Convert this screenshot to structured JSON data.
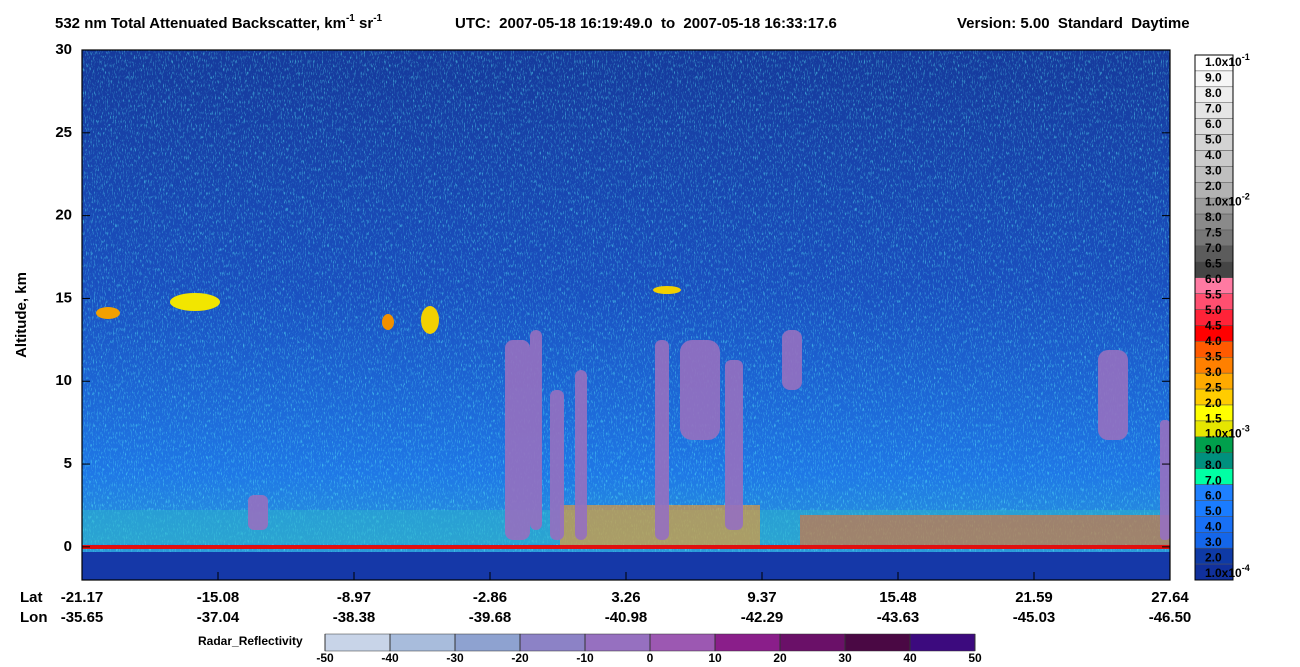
{
  "chart_data": {
    "type": "heatmap",
    "title": {
      "main": "532 nm Total Attenuated Backscatter, km",
      "exp1": "-1",
      "mid": " sr",
      "exp2": "-1",
      "time": "UTC:  2007-05-18 16:19:49.0  to  2007-05-18 16:33:17.6",
      "version": "Version: 5.00  Standard  Daytime"
    },
    "ylabel": "Altitude, km",
    "ylim": [
      -2,
      30
    ],
    "yticks": [
      0,
      5,
      10,
      15,
      20,
      25,
      30
    ],
    "x_row_labels": [
      "Lat",
      "Lon"
    ],
    "x_categories": [
      {
        "lat": "-21.17",
        "lon": "-35.65"
      },
      {
        "lat": "-15.08",
        "lon": "-37.04"
      },
      {
        "lat": "-8.97",
        "lon": "-38.38"
      },
      {
        "lat": "-2.86",
        "lon": "-39.68"
      },
      {
        "lat": "3.26",
        "lon": "-40.98"
      },
      {
        "lat": "9.37",
        "lon": "-42.29"
      },
      {
        "lat": "15.48",
        "lon": "-43.63"
      },
      {
        "lat": "21.59",
        "lon": "-45.03"
      },
      {
        "lat": "27.64",
        "lon": "-46.50"
      }
    ],
    "colorbar": {
      "labels": [
        {
          "base": "1.0x10",
          "exp": "-1"
        },
        "9.0",
        "8.0",
        "7.0",
        "6.0",
        "5.0",
        "4.0",
        "3.0",
        "2.0",
        {
          "base": "1.0x10",
          "exp": "-2"
        },
        "8.0",
        "7.5",
        "7.0",
        "6.5",
        "6.0",
        "5.5",
        "5.0",
        "4.5",
        "4.0",
        "3.5",
        "3.0",
        "2.5",
        "2.0",
        "1.5",
        {
          "base": "1.0x10",
          "exp": "-3"
        },
        "9.0",
        "8.0",
        "7.0",
        "6.0",
        "5.0",
        "4.0",
        "3.0",
        "2.0",
        {
          "base": "1.0x10",
          "exp": "-4"
        }
      ],
      "colors": [
        "#ffffff",
        "#f6f6f6",
        "#eeeeee",
        "#e5e5e5",
        "#dcdcdc",
        "#d3d3d3",
        "#cacaca",
        "#bfbfbf",
        "#b2b2b2",
        "#9c9c9c",
        "#8a8a8a",
        "#777777",
        "#5c5c5c",
        "#454545",
        "#ff7aa2",
        "#ff4f70",
        "#ff2338",
        "#ff0000",
        "#ff5a00",
        "#ff8000",
        "#ffaa00",
        "#ffcc00",
        "#ffff00",
        "#e6e600",
        "#00a04c",
        "#00907e",
        "#00ffa4",
        "#1e80ff",
        "#1a7cff",
        "#1870f6",
        "#1466ea",
        "#0e3aa6",
        "#10309c"
      ]
    },
    "radar_colorbar": {
      "label": "Radar_Reflectivity",
      "lim": [
        -50,
        50
      ],
      "ticks": [
        -50,
        -40,
        -30,
        -20,
        -10,
        0,
        10,
        20,
        30,
        40,
        50
      ],
      "colors": [
        "#c8d4e8",
        "#a8bcdc",
        "#8ea2d0",
        "#8c82c6",
        "#9670c0",
        "#9c58b2",
        "#8a1e8a",
        "#6a1068",
        "#4a0844",
        "#3c0a7e"
      ]
    }
  }
}
